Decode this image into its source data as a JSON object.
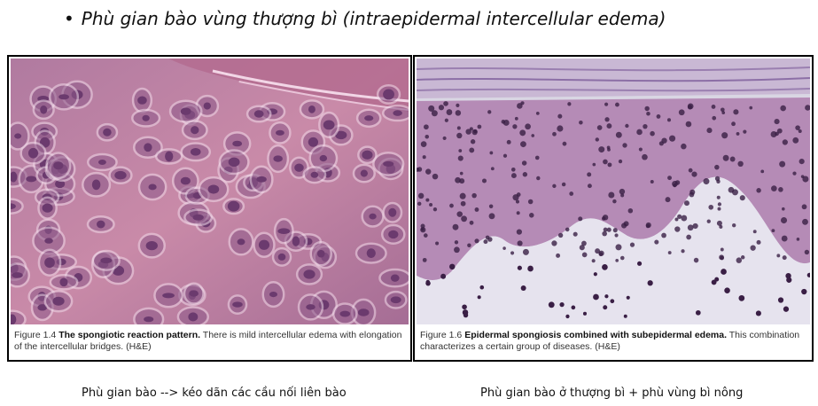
{
  "slide": {
    "bullet": "•",
    "title": "Phù gian bào vùng thượng bì (intraepidermal intercellular edema)"
  },
  "figures": [
    {
      "figure_label": "Figure 1.4",
      "caption_heading": "The spongiotic reaction pattern.",
      "caption_text": "There is mild intercellular edema with elongation of the intercellular bridges. (H&E)",
      "subtitle": "Phù gian bào --> kéo dãn các cầu nối liên bào",
      "image_subject": "spongiotic-epidermis-micrograph"
    },
    {
      "figure_label": "Figure 1.6",
      "caption_heading": "Epidermal spongiosis combined with subepidermal edema.",
      "caption_text": "This combination characterizes a certain group of diseases. (H&E)",
      "subtitle": "Phù gian bào ở thượng bì + phù vùng bì nông",
      "image_subject": "subepidermal-edema-micrograph"
    }
  ],
  "colors": {
    "stain_pink": "#c98aa8",
    "stain_purple": "#6b3a6e",
    "nucleus": "#3a1f45",
    "dermis_pale": "#d9d6e3"
  }
}
